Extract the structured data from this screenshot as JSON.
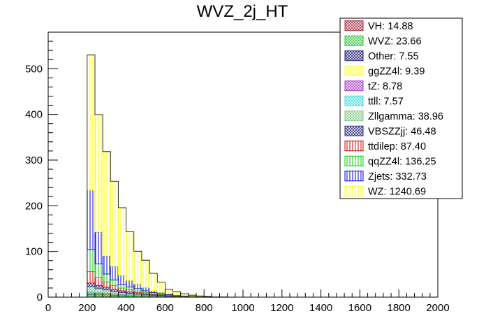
{
  "chart_data": {
    "type": "bar",
    "title": "WVZ_2j_HT",
    "xlabel": "",
    "ylabel": "",
    "xlim": [
      0,
      2000
    ],
    "ylim": [
      0,
      580
    ],
    "bin_width": 40,
    "bin_edges_start": 200,
    "x_ticks": [
      0,
      200,
      400,
      600,
      800,
      1000,
      1200,
      1400,
      1600,
      1800,
      2000
    ],
    "y_ticks": [
      0,
      100,
      200,
      300,
      400,
      500
    ],
    "grid": false,
    "legend_position": "top-right",
    "stacked": true,
    "series": [
      {
        "name": "VH",
        "legend_label": "VH: 14.88",
        "color": "#aa3344",
        "fill": "crosshatch",
        "values": [
          2.0,
          2.0,
          2.0,
          1.5,
          1.5,
          1.2,
          1.0,
          0.8,
          0.7,
          0.6,
          0.4,
          0.3,
          0.3,
          0.2,
          0.2,
          0.1,
          0.1,
          0.1,
          0.0,
          0.0
        ]
      },
      {
        "name": "WVZ",
        "legend_label": "WVZ: 23.66",
        "color": "#33cc44",
        "fill": "crosshatch",
        "values": [
          3.0,
          3.0,
          3.0,
          2.5,
          2.3,
          2.0,
          1.8,
          1.4,
          1.1,
          0.9,
          0.7,
          0.5,
          0.4,
          0.3,
          0.3,
          0.2,
          0.1,
          0.1,
          0.1,
          0.0
        ]
      },
      {
        "name": "Other",
        "legend_label": "Other: 7.55",
        "color": "#222277",
        "fill": "crosshatch",
        "values": [
          1.5,
          1.2,
          1.0,
          0.8,
          0.7,
          0.6,
          0.5,
          0.4,
          0.3,
          0.2,
          0.1,
          0.1,
          0.1,
          0.0,
          0.0,
          0.0,
          0.0,
          0.0,
          0.0,
          0.0
        ]
      },
      {
        "name": "ggZZ4l",
        "legend_label": "ggZZ4l: 9.39",
        "color": "#ffff44",
        "fill": "crosshatch",
        "values": [
          1.8,
          1.6,
          1.3,
          1.0,
          0.8,
          0.7,
          0.6,
          0.4,
          0.3,
          0.2,
          0.2,
          0.1,
          0.1,
          0.1,
          0.1,
          0.0,
          0.0,
          0.0,
          0.0,
          0.0
        ]
      },
      {
        "name": "tZ",
        "legend_label": "tZ: 8.78",
        "color": "#aa44cc",
        "fill": "crosshatch",
        "values": [
          1.5,
          1.5,
          1.2,
          1.0,
          0.8,
          0.7,
          0.6,
          0.4,
          0.3,
          0.2,
          0.2,
          0.1,
          0.1,
          0.1,
          0.0,
          0.0,
          0.0,
          0.0,
          0.0,
          0.0
        ]
      },
      {
        "name": "ttll",
        "legend_label": "ttll: 7.57",
        "color": "#44dddd",
        "fill": "crosshatch",
        "values": [
          1.2,
          1.3,
          1.1,
          0.9,
          0.7,
          0.6,
          0.5,
          0.4,
          0.3,
          0.2,
          0.1,
          0.1,
          0.1,
          0.0,
          0.0,
          0.0,
          0.0,
          0.0,
          0.0,
          0.0
        ]
      },
      {
        "name": "Zllgamma",
        "legend_label": "Zllgamma: 38.96",
        "color": "#88cc88",
        "fill": "crosshatch",
        "values": [
          12,
          8,
          6,
          4,
          3,
          2,
          1.5,
          1,
          0.6,
          0.4,
          0.2,
          0.1,
          0.1,
          0,
          0,
          0,
          0,
          0,
          0,
          0
        ]
      },
      {
        "name": "VBSZZjj",
        "legend_label": "VBSZZjj: 46.48",
        "color": "#333388",
        "fill": "crosshatch",
        "values": [
          8,
          7,
          6,
          5,
          4,
          3.5,
          3,
          2.5,
          2,
          1.5,
          1,
          0.8,
          0.6,
          0.5,
          0.3,
          0.2,
          0.1,
          0.1,
          0,
          0
        ]
      },
      {
        "name": "ttdilep",
        "legend_label": "ttdilep: 87.40",
        "color": "#cc0000",
        "fill": "vertical",
        "values": [
          25,
          18,
          12,
          9,
          6,
          5,
          4,
          3,
          2,
          1.5,
          1,
          0.5,
          0.4,
          0.2,
          0.2,
          0.1,
          0,
          0,
          0,
          0
        ]
      },
      {
        "name": "qqZZ4l",
        "legend_label": "qqZZ4l: 136.25",
        "color": "#00cc00",
        "fill": "vertical",
        "values": [
          48,
          29,
          17,
          12,
          8,
          6,
          5,
          3.5,
          2.5,
          2,
          1.5,
          1,
          0.6,
          0.4,
          0.2,
          0.1,
          0,
          0,
          0,
          0
        ]
      },
      {
        "name": "Zjets",
        "legend_label": "Zjets: 332.73",
        "color": "#0000cc",
        "fill": "vertical",
        "values": [
          130,
          70,
          40,
          30,
          20,
          14,
          10,
          7,
          4,
          3,
          2,
          1,
          0.7,
          0.5,
          0.3,
          0.2,
          0,
          0,
          0,
          0
        ]
      },
      {
        "name": "WZ",
        "legend_label": "WZ: 1240.69",
        "color": "#ffff00",
        "fill": "vertical",
        "values": [
          296,
          257,
          228,
          186,
          148,
          107,
          72,
          60,
          38,
          22,
          10,
          7,
          4,
          2,
          1,
          0.5,
          0,
          0,
          0,
          0
        ]
      }
    ]
  }
}
